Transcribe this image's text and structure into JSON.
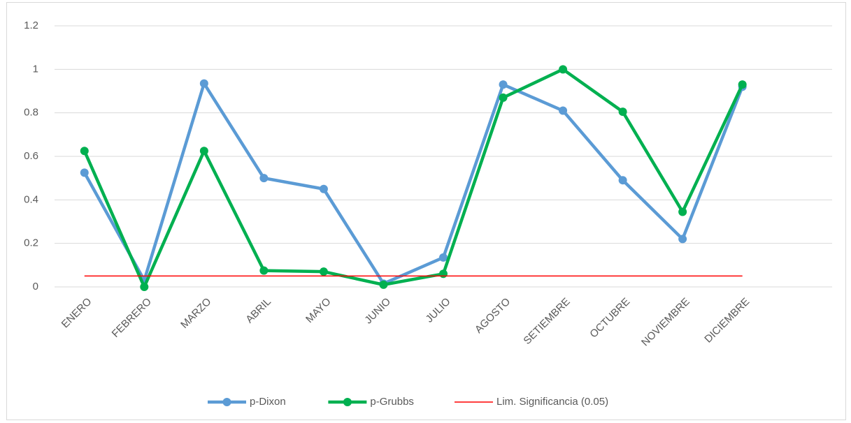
{
  "chart_data": {
    "type": "line",
    "categories": [
      "ENERO",
      "FEBRERO",
      "MARZO",
      "ABRIL",
      "MAYO",
      "JUNIO",
      "JULIO",
      "AGOSTO",
      "SETIEMBRE",
      "OCTUBRE",
      "NOVIEMBRE",
      "DICIEMBRE"
    ],
    "series": [
      {
        "name": "p-Dixon",
        "color": "#5b9bd5",
        "values": [
          0.525,
          0.03,
          0.935,
          0.5,
          0.45,
          0.015,
          0.135,
          0.93,
          0.81,
          0.49,
          0.22,
          0.92
        ]
      },
      {
        "name": "p-Grubbs",
        "color": "#00b050",
        "values": [
          0.625,
          0.0,
          0.625,
          0.075,
          0.07,
          0.01,
          0.06,
          0.87,
          1.0,
          0.805,
          0.345,
          0.93
        ]
      },
      {
        "name": "Lim. Significancia (0.05)",
        "color": "#ff0000",
        "values": [
          0.05,
          0.05,
          0.05,
          0.05,
          0.05,
          0.05,
          0.05,
          0.05,
          0.05,
          0.05,
          0.05,
          0.05
        ]
      }
    ],
    "ylim": [
      0,
      1.2
    ],
    "yticks": [
      0,
      0.2,
      0.4,
      0.6,
      0.8,
      1,
      1.2
    ],
    "grid": true,
    "legend": "bottom"
  }
}
